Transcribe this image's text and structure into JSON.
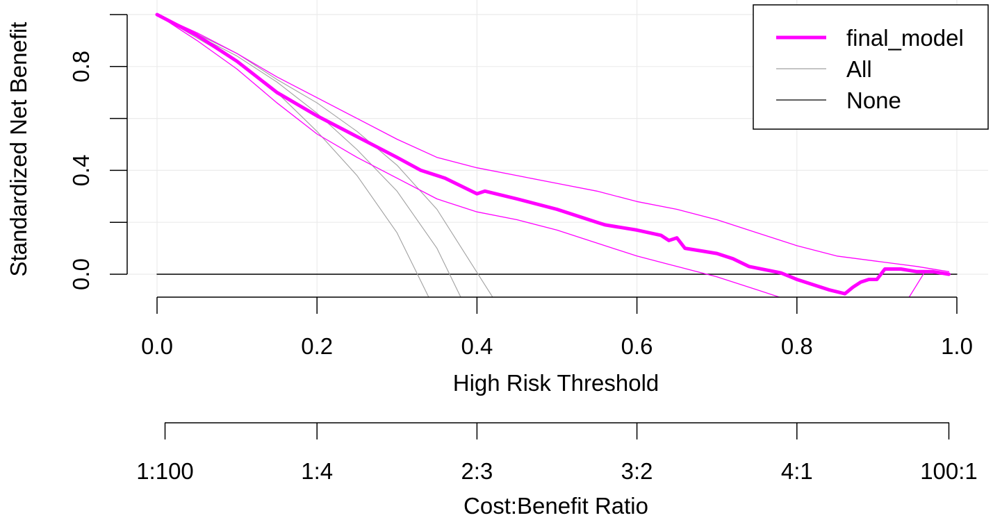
{
  "chart_data": {
    "type": "line",
    "title": "",
    "xlabel": "High Risk Threshold",
    "ylabel": "Standardized Net Benefit",
    "xlim": [
      0,
      1
    ],
    "ylim": [
      -0.08,
      1.0
    ],
    "grid": true,
    "x_ticks": [
      {
        "value": 0.0,
        "label": "0.0"
      },
      {
        "value": 0.2,
        "label": "0.2"
      },
      {
        "value": 0.4,
        "label": "0.4"
      },
      {
        "value": 0.6,
        "label": "0.6"
      },
      {
        "value": 0.8,
        "label": "0.8"
      },
      {
        "value": 1.0,
        "label": "1.0"
      }
    ],
    "y_ticks": [
      {
        "value": 0.0,
        "label": "0.0"
      },
      {
        "value": 0.4,
        "label": "0.4"
      },
      {
        "value": 0.8,
        "label": "0.8"
      }
    ],
    "y_minor_ticks": [
      0.2,
      0.6,
      1.0
    ],
    "secondary_axis": {
      "title": "Cost:Benefit Ratio",
      "ticks": [
        {
          "value": 0.01,
          "label": "1:100"
        },
        {
          "value": 0.2,
          "label": "1:4"
        },
        {
          "value": 0.4,
          "label": "2:3"
        },
        {
          "value": 0.6,
          "label": "3:2"
        },
        {
          "value": 0.8,
          "label": "4:1"
        },
        {
          "value": 0.99,
          "label": "100:1"
        }
      ]
    },
    "legend": {
      "position": "top-right",
      "entries": [
        {
          "label": "final_model",
          "color": "#ff00ff",
          "style": "thick"
        },
        {
          "label": "All",
          "color": "#a0a0a0",
          "style": "thin"
        },
        {
          "label": "None",
          "color": "#000000",
          "style": "thin"
        }
      ]
    },
    "series": [
      {
        "name": "final_model",
        "color": "#ff00ff",
        "role": "estimate",
        "x": [
          0.0,
          0.05,
          0.1,
          0.15,
          0.2,
          0.25,
          0.3,
          0.33,
          0.36,
          0.4,
          0.41,
          0.45,
          0.5,
          0.55,
          0.56,
          0.6,
          0.63,
          0.64,
          0.65,
          0.66,
          0.7,
          0.72,
          0.74,
          0.78,
          0.8,
          0.84,
          0.86,
          0.87,
          0.88,
          0.89,
          0.9,
          0.91,
          0.93,
          0.95,
          0.97,
          0.99
        ],
        "y": [
          1.0,
          0.92,
          0.82,
          0.7,
          0.61,
          0.53,
          0.45,
          0.4,
          0.37,
          0.31,
          0.32,
          0.29,
          0.25,
          0.2,
          0.19,
          0.17,
          0.15,
          0.13,
          0.14,
          0.1,
          0.08,
          0.06,
          0.03,
          0.005,
          -0.02,
          -0.06,
          -0.075,
          -0.05,
          -0.03,
          -0.02,
          -0.02,
          0.02,
          0.02,
          0.01,
          0.01,
          0.0
        ]
      },
      {
        "name": "final_model_upper",
        "color": "#ff00ff",
        "role": "ci",
        "x": [
          0.0,
          0.05,
          0.1,
          0.15,
          0.2,
          0.25,
          0.3,
          0.35,
          0.4,
          0.45,
          0.5,
          0.55,
          0.6,
          0.65,
          0.7,
          0.75,
          0.8,
          0.85,
          0.9,
          0.95,
          0.99
        ],
        "y": [
          1.0,
          0.93,
          0.85,
          0.76,
          0.68,
          0.6,
          0.52,
          0.45,
          0.41,
          0.38,
          0.35,
          0.32,
          0.28,
          0.25,
          0.21,
          0.16,
          0.11,
          0.07,
          0.05,
          0.03,
          0.01
        ]
      },
      {
        "name": "final_model_lower",
        "color": "#ff00ff",
        "role": "ci",
        "x": [
          0.0,
          0.05,
          0.1,
          0.15,
          0.2,
          0.25,
          0.3,
          0.35,
          0.4,
          0.45,
          0.5,
          0.55,
          0.6,
          0.65,
          0.7,
          0.75,
          0.78
        ],
        "y": [
          1.0,
          0.9,
          0.79,
          0.66,
          0.54,
          0.45,
          0.37,
          0.29,
          0.24,
          0.21,
          0.17,
          0.12,
          0.07,
          0.03,
          -0.01,
          -0.06,
          -0.09
        ]
      },
      {
        "name": "final_model_lower_tail",
        "color": "#ff00ff",
        "role": "ci",
        "x": [
          0.94,
          0.95,
          0.96
        ],
        "y": [
          -0.09,
          -0.04,
          0.01
        ]
      },
      {
        "name": "All",
        "color": "#a0a0a0",
        "role": "all",
        "x": [
          0.0,
          0.1,
          0.15,
          0.2,
          0.25,
          0.3,
          0.34
        ],
        "y": [
          1.0,
          0.82,
          0.7,
          0.55,
          0.38,
          0.16,
          -0.09
        ]
      },
      {
        "name": "All_upper",
        "color": "#a0a0a0",
        "role": "all",
        "x": [
          0.0,
          0.1,
          0.15,
          0.2,
          0.25,
          0.3,
          0.35,
          0.38
        ],
        "y": [
          1.0,
          0.84,
          0.74,
          0.62,
          0.48,
          0.32,
          0.1,
          -0.09
        ]
      },
      {
        "name": "All_lower",
        "color": "#a0a0a0",
        "role": "all",
        "x": [
          0.0,
          0.1,
          0.15,
          0.2,
          0.25,
          0.3,
          0.35,
          0.42
        ],
        "y": [
          1.0,
          0.85,
          0.75,
          0.66,
          0.55,
          0.42,
          0.25,
          -0.09
        ]
      },
      {
        "name": "None",
        "color": "#000000",
        "role": "none",
        "x": [
          0.0,
          1.0
        ],
        "y": [
          0.0,
          0.0
        ]
      }
    ]
  }
}
